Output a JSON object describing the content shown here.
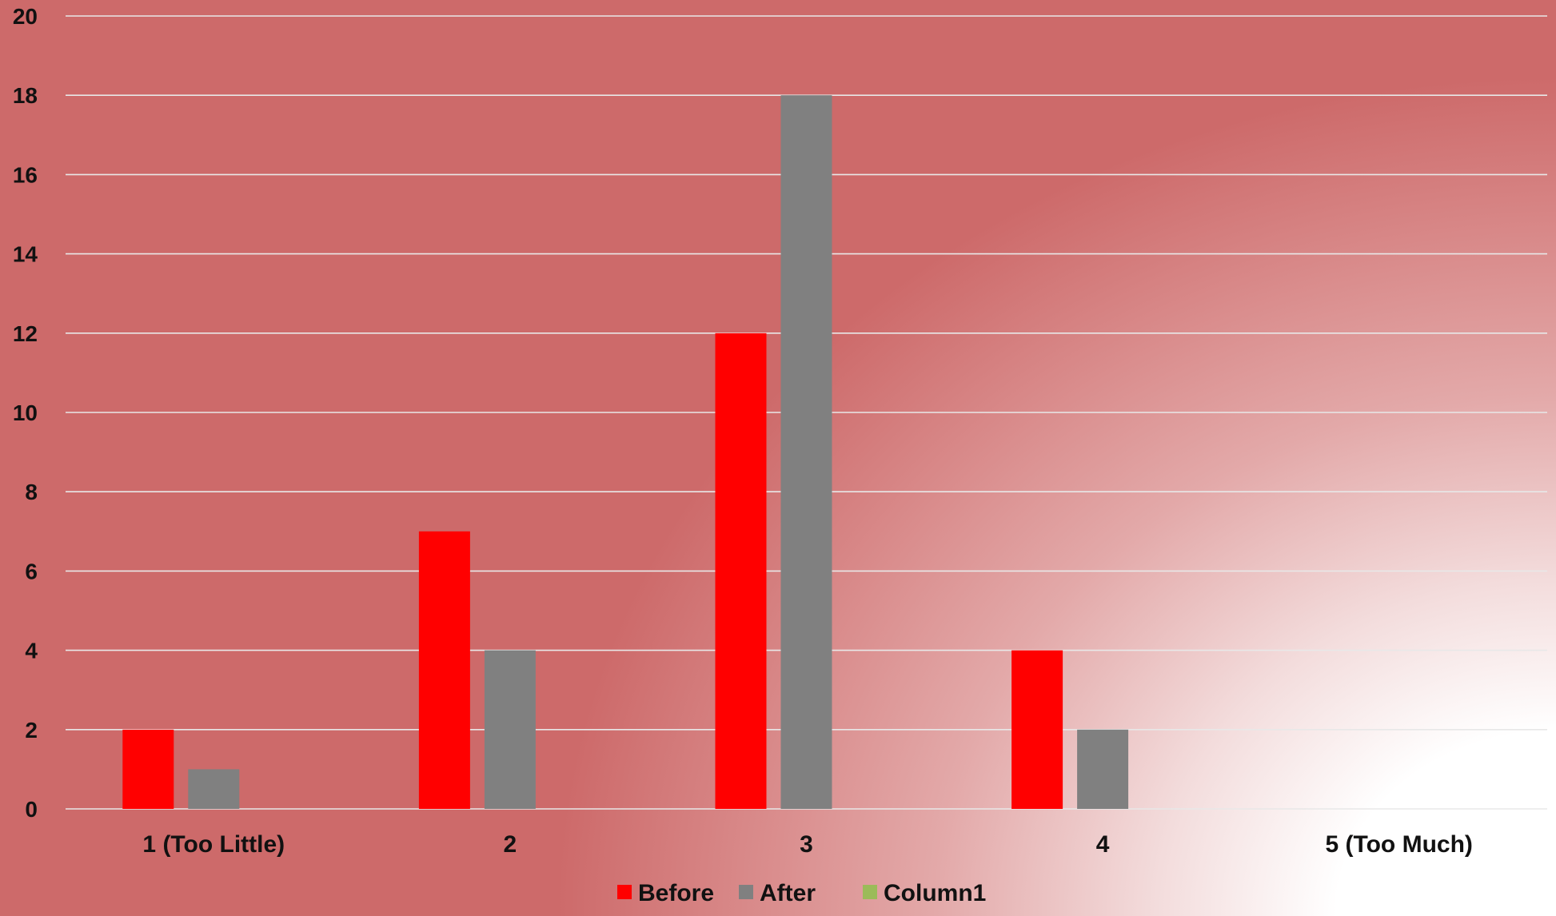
{
  "chart_data": {
    "type": "bar",
    "categories": [
      "1 (Too Little)",
      "2",
      "3",
      "4",
      "5 (Too Much)"
    ],
    "series": [
      {
        "name": "Before",
        "values": [
          2,
          7,
          12,
          4,
          0
        ],
        "color": "#ff0000"
      },
      {
        "name": "After",
        "values": [
          1,
          4,
          18,
          2,
          0
        ],
        "color": "#808080"
      },
      {
        "name": "Column1",
        "values": [
          0,
          0,
          0,
          0,
          0
        ],
        "color": "#9bbb59"
      }
    ],
    "ylim": [
      0,
      20
    ],
    "yticks": [
      0,
      2,
      4,
      6,
      8,
      10,
      12,
      14,
      16,
      18,
      20
    ],
    "grid": true,
    "legend_position": "bottom"
  }
}
